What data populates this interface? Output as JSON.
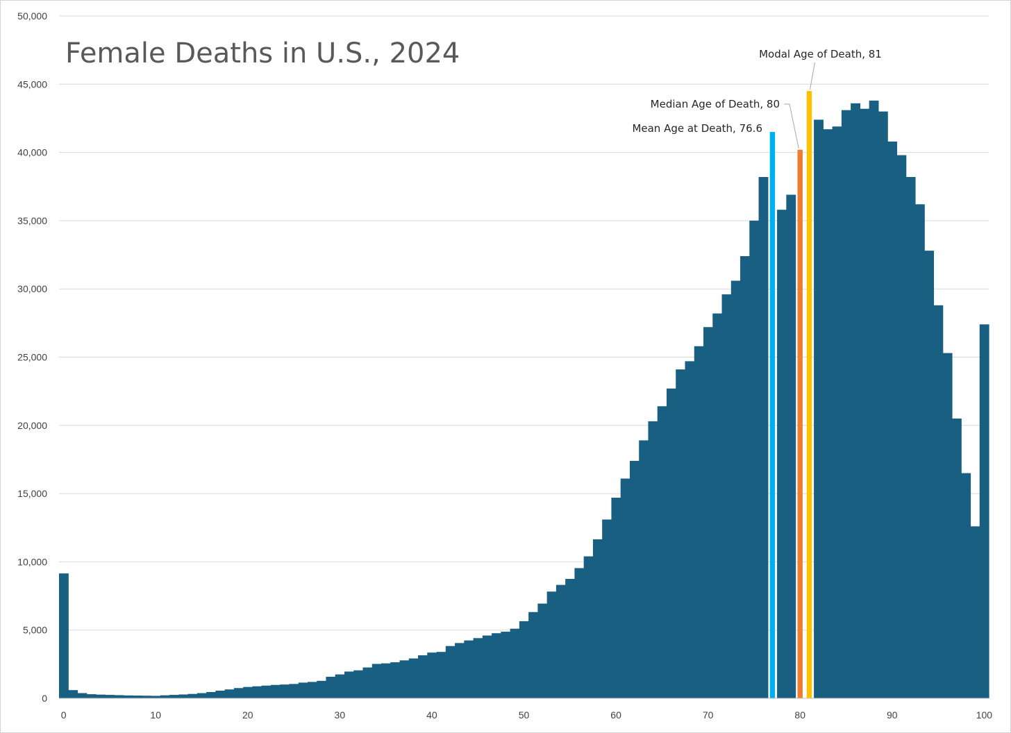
{
  "chart_data": {
    "type": "bar",
    "title": "Female Deaths in U.S., 2024",
    "xlabel": "",
    "ylabel": "",
    "ylim": [
      0,
      50000
    ],
    "y_ticks": [
      "0",
      "5,000",
      "10,000",
      "15,000",
      "20,000",
      "25,000",
      "30,000",
      "35,000",
      "40,000",
      "45,000",
      "50,000"
    ],
    "y_tick_values": [
      0,
      5000,
      10000,
      15000,
      20000,
      25000,
      30000,
      35000,
      40000,
      45000,
      50000
    ],
    "x_ticks": [
      "0",
      "10",
      "20",
      "30",
      "40",
      "50",
      "60",
      "70",
      "80",
      "90",
      "100"
    ],
    "x_tick_values": [
      0,
      10,
      20,
      30,
      40,
      50,
      60,
      70,
      80,
      90,
      100
    ],
    "categories": [
      0,
      1,
      2,
      3,
      4,
      5,
      6,
      7,
      8,
      9,
      10,
      11,
      12,
      13,
      14,
      15,
      16,
      17,
      18,
      19,
      20,
      21,
      22,
      23,
      24,
      25,
      26,
      27,
      28,
      29,
      30,
      31,
      32,
      33,
      34,
      35,
      36,
      37,
      38,
      39,
      40,
      41,
      42,
      43,
      44,
      45,
      46,
      47,
      48,
      49,
      50,
      51,
      52,
      53,
      54,
      55,
      56,
      57,
      58,
      59,
      60,
      61,
      62,
      63,
      64,
      65,
      66,
      67,
      68,
      69,
      70,
      71,
      72,
      73,
      74,
      75,
      76,
      77,
      78,
      79,
      80,
      81,
      82,
      83,
      84,
      85,
      86,
      87,
      88,
      89,
      90,
      91,
      92,
      93,
      94,
      95,
      96,
      97,
      98,
      99,
      100
    ],
    "values": [
      9150,
      600,
      380,
      300,
      270,
      250,
      230,
      210,
      200,
      190,
      180,
      220,
      250,
      280,
      320,
      380,
      460,
      560,
      650,
      750,
      830,
      880,
      930,
      980,
      1010,
      1050,
      1150,
      1200,
      1280,
      1580,
      1750,
      1960,
      2050,
      2260,
      2520,
      2560,
      2640,
      2780,
      2920,
      3150,
      3350,
      3400,
      3830,
      4050,
      4240,
      4410,
      4600,
      4770,
      4880,
      5100,
      5650,
      6320,
      6940,
      7820,
      8310,
      8750,
      9540,
      10400,
      11650,
      13100,
      14700,
      16100,
      17400,
      18900,
      20300,
      21400,
      22700,
      24100,
      24700,
      25800,
      27200,
      28200,
      29600,
      30600,
      32400,
      35000,
      38200,
      41500,
      35800,
      36900,
      40200,
      44500,
      42400,
      41700,
      41900,
      43100,
      43600,
      43200,
      43800,
      43000,
      40800,
      39800,
      38200,
      36200,
      32800,
      28800,
      25300,
      20500,
      16500,
      12600,
      27400
    ],
    "highlights": [
      {
        "category": 77,
        "color": "#00b0f0",
        "label": "Mean Age at Death, 76.6"
      },
      {
        "category": 80,
        "color": "#ed7d31",
        "label": "Median Age of Death, 80"
      },
      {
        "category": 81,
        "color": "#ffc000",
        "label": "Modal Age of Death, 81"
      }
    ],
    "bar_color": "#185f82",
    "grid": true,
    "legend": "none"
  }
}
